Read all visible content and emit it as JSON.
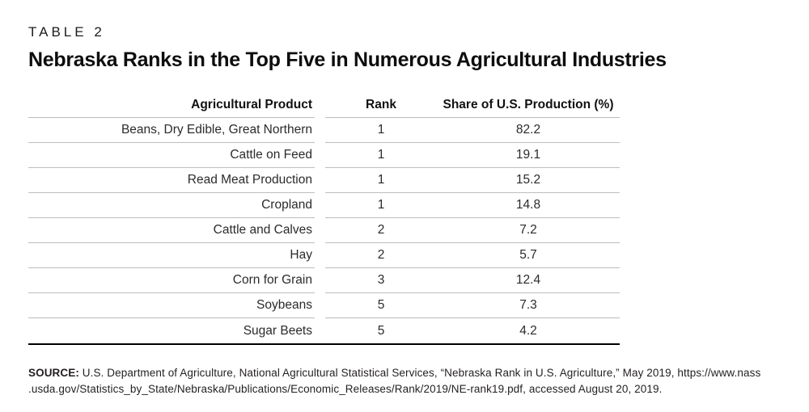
{
  "page": {
    "kicker": "TABLE 2",
    "title": "Nebraska Ranks in the Top Five in Numerous Agricultural Industries"
  },
  "table": {
    "columns": {
      "product": "Agricultural Product",
      "rank": "Rank",
      "share": "Share of U.S. Production (%)"
    },
    "rows": [
      {
        "product": "Beans, Dry Edible, Great Northern",
        "rank": "1",
        "share": "82.2"
      },
      {
        "product": "Cattle on Feed",
        "rank": "1",
        "share": "19.1"
      },
      {
        "product": "Read Meat Production",
        "rank": "1",
        "share": "15.2"
      },
      {
        "product": "Cropland",
        "rank": "1",
        "share": "14.8"
      },
      {
        "product": "Cattle and Calves",
        "rank": "2",
        "share": "7.2"
      },
      {
        "product": "Hay",
        "rank": "2",
        "share": "5.7"
      },
      {
        "product": "Corn for Grain",
        "rank": "3",
        "share": "12.4"
      },
      {
        "product": "Soybeans",
        "rank": "5",
        "share": "7.3"
      },
      {
        "product": "Sugar Beets",
        "rank": "5",
        "share": "4.2"
      }
    ]
  },
  "source": {
    "label": "SOURCE:",
    "line1": " U.S. Department of Agriculture, National Agricultural Statistical Services, “Nebraska Rank in U.S. Agriculture,” May 2019, https://www.nass",
    "line2": ".usda.gov/Statistics_by_State/Nebraska/Publications/Economic_Releases/Rank/2019/NE-rank19.pdf, accessed August 20, 2019."
  },
  "chart_data": {
    "type": "table",
    "title": "Nebraska Ranks in the Top Five in Numerous Agricultural Industries",
    "columns": [
      "Agricultural Product",
      "Rank",
      "Share of U.S. Production (%)"
    ],
    "rows": [
      [
        "Beans, Dry Edible, Great Northern",
        1,
        82.2
      ],
      [
        "Cattle on Feed",
        1,
        19.1
      ],
      [
        "Read Meat Production",
        1,
        15.2
      ],
      [
        "Cropland",
        1,
        14.8
      ],
      [
        "Cattle and Calves",
        2,
        7.2
      ],
      [
        "Hay",
        2,
        5.7
      ],
      [
        "Corn for Grain",
        3,
        12.4
      ],
      [
        "Soybeans",
        5,
        7.3
      ],
      [
        "Sugar Beets",
        5,
        4.2
      ]
    ]
  }
}
